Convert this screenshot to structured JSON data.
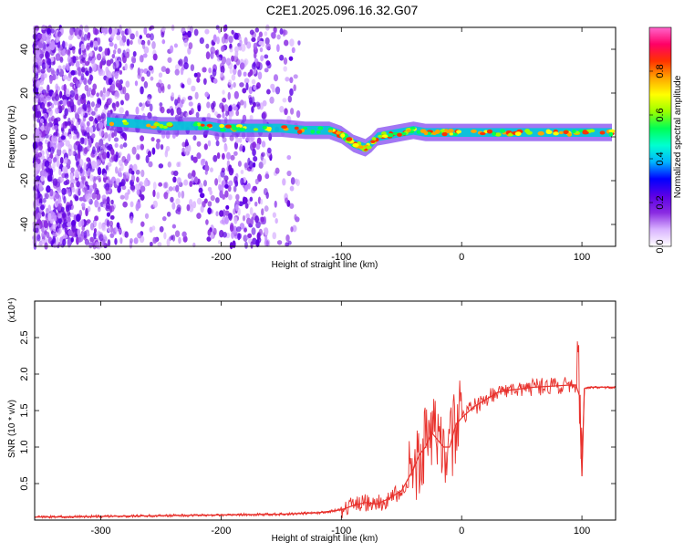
{
  "page": {
    "title": "C2E1.2025.096.16.32.G07"
  },
  "chart_data": [
    {
      "type": "heatmap",
      "xlabel": "Height of straight line (km)",
      "ylabel": "Frequency (Hz)",
      "xlim": [
        -355,
        128
      ],
      "ylim": [
        -50,
        50
      ],
      "xticks": [
        -300,
        -200,
        -100,
        0,
        100
      ],
      "yticks": [
        -40,
        -20,
        0,
        20,
        40
      ],
      "colorbar": {
        "label": "Normalized spectral amplitude",
        "range": [
          0.0,
          1.0
        ],
        "ticks": [
          0.0,
          0.2,
          0.4,
          0.6,
          0.8
        ],
        "colors": [
          "#ffffff",
          "#d9b3ff",
          "#8a2be2",
          "#5b00e6",
          "#0000ff",
          "#00b4ff",
          "#00ffd0",
          "#00ff55",
          "#9bff00",
          "#ffff00",
          "#ffa500",
          "#ff3300",
          "#ff0066",
          "#ff66cc"
        ]
      },
      "ridge": {
        "x": [
          -295,
          -270,
          -250,
          -230,
          -210,
          -200,
          -190,
          -180,
          -150,
          -130,
          -110,
          -100,
          -95,
          -90,
          -85,
          -80,
          -75,
          -70,
          -60,
          -50,
          -40,
          -30,
          -20,
          -10,
          0,
          20,
          40,
          60,
          80,
          100,
          125
        ],
        "frequency_hz": [
          7,
          6,
          5,
          5,
          5,
          4,
          4,
          4,
          4,
          3,
          3,
          1,
          -1,
          -3,
          -4,
          -5,
          -3,
          0,
          1,
          2,
          3,
          2,
          2,
          2,
          2,
          2,
          2,
          2,
          2,
          2,
          2
        ]
      }
    },
    {
      "type": "line",
      "xlabel": "Height of straight line (km)",
      "ylabel": "SNR (10 * v/v)",
      "y_multiplier": "(x10⁴)",
      "xlim": [
        -355,
        128
      ],
      "ylim": [
        0,
        3.0
      ],
      "xticks": [
        -300,
        -200,
        -100,
        0,
        100
      ],
      "yticks": [
        0.5,
        1.0,
        1.5,
        2.0,
        2.5
      ],
      "color": "#e8312c",
      "series": [
        {
          "x": [
            -355,
            -300,
            -250,
            -200,
            -150,
            -120,
            -100,
            -90,
            -80,
            -70,
            -60,
            -50,
            -45,
            -40,
            -35,
            -30,
            -25,
            -20,
            -15,
            -10,
            -5,
            0,
            10,
            20,
            30,
            40,
            50,
            60,
            70,
            80,
            90,
            95,
            98,
            100,
            102,
            105,
            110,
            120,
            128
          ],
          "values": [
            0.04,
            0.05,
            0.06,
            0.07,
            0.08,
            0.1,
            0.14,
            0.2,
            0.24,
            0.22,
            0.3,
            0.4,
            0.55,
            0.7,
            0.9,
            1.0,
            1.2,
            1.1,
            1.0,
            1.0,
            1.3,
            1.4,
            1.55,
            1.65,
            1.75,
            1.78,
            1.8,
            1.82,
            1.83,
            1.84,
            1.85,
            1.85,
            1.7,
            0.6,
            1.8,
            1.82,
            1.82,
            1.82,
            1.82
          ]
        }
      ]
    }
  ]
}
